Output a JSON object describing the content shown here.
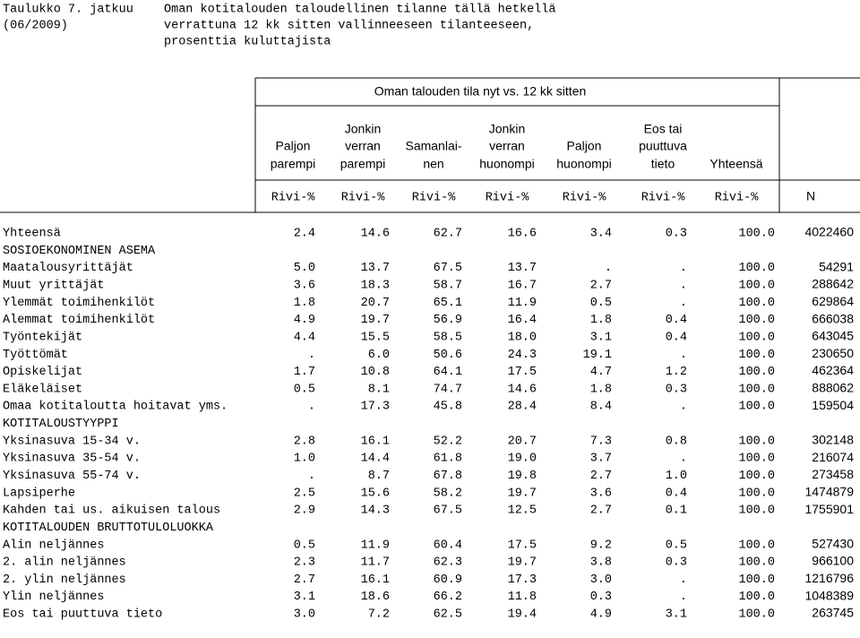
{
  "header": {
    "title": [
      "Taulukko 7. jatkuu",
      "(06/2009)"
    ],
    "description": [
      "Oman kotitalouden taloudellinen tilanne tällä hetkellä",
      "verrattuna 12 kk sitten vallinneeseen tilanteeseen,",
      "prosenttia kuluttajista"
    ]
  },
  "table": {
    "group_header": "Oman talouden tila nyt vs. 12 kk sitten",
    "columns": [
      [
        "Paljon",
        "parempi"
      ],
      [
        "Jonkin",
        "verran",
        "parempi"
      ],
      [
        "Samanlai-",
        "nen"
      ],
      [
        "Jonkin",
        "verran",
        "huonompi"
      ],
      [
        "Paljon",
        "huonompi"
      ],
      [
        "Eos tai",
        "puuttuva",
        "tieto"
      ],
      [
        "Yhteensä"
      ]
    ],
    "units": [
      "Rivi-%",
      "Rivi-%",
      "Rivi-%",
      "Rivi-%",
      "Rivi-%",
      "Rivi-%",
      "Rivi-%",
      "N"
    ],
    "rows": [
      {
        "label": "Yhteensä",
        "cells": [
          "2.4",
          "14.6",
          "62.7",
          "16.6",
          "3.4",
          "0.3",
          "100.0",
          "4022460"
        ]
      },
      {
        "label": "SOSIOEKONOMINEN ASEMA"
      },
      {
        "label": "Maatalousyrittäjät",
        "cells": [
          "5.0",
          "13.7",
          "67.5",
          "13.7",
          ".",
          ".",
          "100.0",
          "54291"
        ]
      },
      {
        "label": "Muut yrittäjät",
        "cells": [
          "3.6",
          "18.3",
          "58.7",
          "16.7",
          "2.7",
          ".",
          "100.0",
          "288642"
        ]
      },
      {
        "label": "Ylemmät toimihenkilöt",
        "cells": [
          "1.8",
          "20.7",
          "65.1",
          "11.9",
          "0.5",
          ".",
          "100.0",
          "629864"
        ]
      },
      {
        "label": "Alemmat toimihenkilöt",
        "cells": [
          "4.9",
          "19.7",
          "56.9",
          "16.4",
          "1.8",
          "0.4",
          "100.0",
          "666038"
        ]
      },
      {
        "label": "Työntekijät",
        "cells": [
          "4.4",
          "15.5",
          "58.5",
          "18.0",
          "3.1",
          "0.4",
          "100.0",
          "643045"
        ]
      },
      {
        "label": "Työttömät",
        "cells": [
          ".",
          "6.0",
          "50.6",
          "24.3",
          "19.1",
          ".",
          "100.0",
          "230650"
        ]
      },
      {
        "label": "Opiskelijat",
        "cells": [
          "1.7",
          "10.8",
          "64.1",
          "17.5",
          "4.7",
          "1.2",
          "100.0",
          "462364"
        ]
      },
      {
        "label": "Eläkeläiset",
        "cells": [
          "0.5",
          "8.1",
          "74.7",
          "14.6",
          "1.8",
          "0.3",
          "100.0",
          "888062"
        ]
      },
      {
        "label": "Omaa kotitaloutta hoitavat yms.",
        "cells": [
          ".",
          "17.3",
          "45.8",
          "28.4",
          "8.4",
          ".",
          "100.0",
          "159504"
        ]
      },
      {
        "label": "KOTITALOUSTYYPPI"
      },
      {
        "label": "Yksinasuva 15-34 v.",
        "cells": [
          "2.8",
          "16.1",
          "52.2",
          "20.7",
          "7.3",
          "0.8",
          "100.0",
          "302148"
        ]
      },
      {
        "label": "Yksinasuva 35-54 v.",
        "cells": [
          "1.0",
          "14.4",
          "61.8",
          "19.0",
          "3.7",
          ".",
          "100.0",
          "216074"
        ]
      },
      {
        "label": "Yksinasuva 55-74 v.",
        "cells": [
          ".",
          "8.7",
          "67.8",
          "19.8",
          "2.7",
          "1.0",
          "100.0",
          "273458"
        ]
      },
      {
        "label": "Lapsiperhe",
        "cells": [
          "2.5",
          "15.6",
          "58.2",
          "19.7",
          "3.6",
          "0.4",
          "100.0",
          "1474879"
        ]
      },
      {
        "label": "Kahden tai us. aikuisen talous",
        "cells": [
          "2.9",
          "14.3",
          "67.5",
          "12.5",
          "2.7",
          "0.1",
          "100.0",
          "1755901"
        ]
      },
      {
        "label": "KOTITALOUDEN BRUTTOTULOLUOKKA"
      },
      {
        "label": "Alin neljännes",
        "cells": [
          "0.5",
          "11.9",
          "60.4",
          "17.5",
          "9.2",
          "0.5",
          "100.0",
          "527430"
        ]
      },
      {
        "label": "2. alin neljännes",
        "cells": [
          "2.3",
          "11.7",
          "62.3",
          "19.7",
          "3.8",
          "0.3",
          "100.0",
          "966100"
        ]
      },
      {
        "label": "2. ylin neljännes",
        "cells": [
          "2.7",
          "16.1",
          "60.9",
          "17.3",
          "3.0",
          ".",
          "100.0",
          "1216796"
        ]
      },
      {
        "label": "Ylin neljännes",
        "cells": [
          "3.1",
          "18.6",
          "66.2",
          "11.8",
          "0.3",
          ".",
          "100.0",
          "1048389"
        ]
      },
      {
        "label": "Eos tai puuttuva tieto",
        "cells": [
          "3.0",
          "7.2",
          "62.5",
          "19.4",
          "4.9",
          "3.1",
          "100.0",
          "263745"
        ]
      }
    ]
  }
}
